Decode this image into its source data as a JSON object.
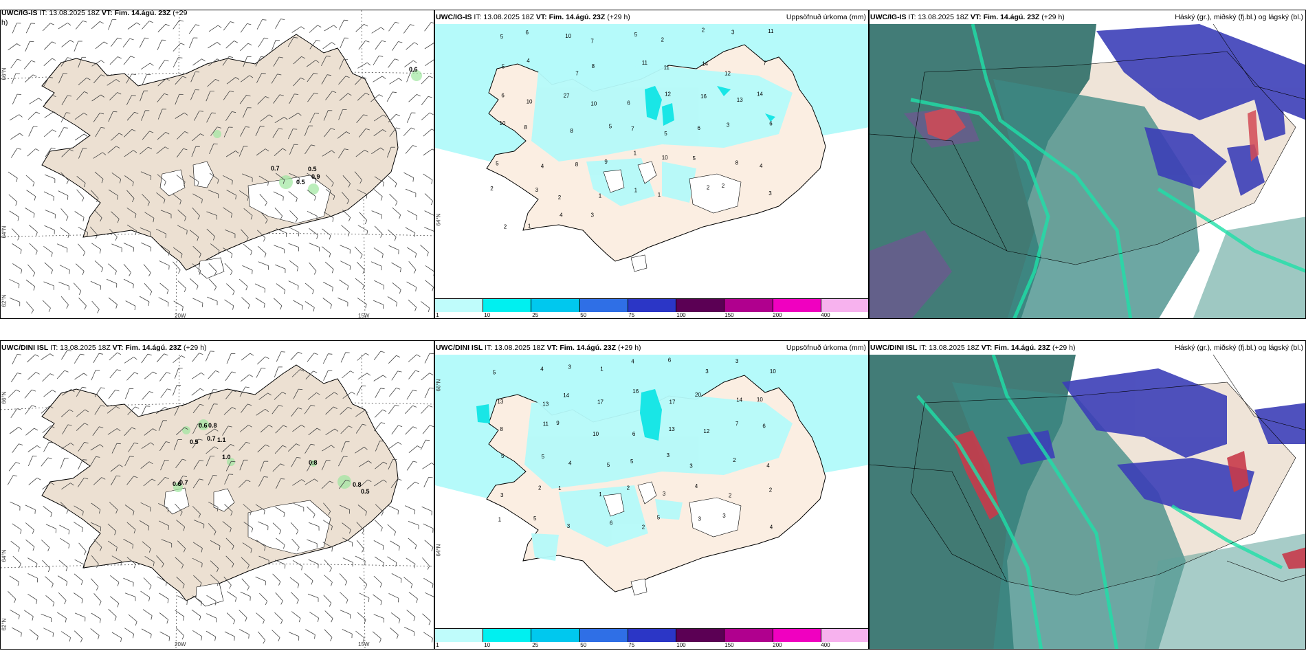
{
  "panels": {
    "wind_top": {
      "model": "UWC/IG-IS",
      "it": "IT: 13.08.2025 18Z",
      "vt_label": "VT: Fim. 14.ágú. 23Z",
      "lead": "(+29",
      "lead2": "h)",
      "lat_labels": [
        "66°N",
        "64°N",
        "62°N"
      ],
      "lon_labels": [
        "20W",
        "15W"
      ],
      "values": [
        "0.6",
        "0.7",
        "0.5",
        "0.9",
        "0.5"
      ]
    },
    "precip_top": {
      "model": "UWC/IG-IS",
      "it": "IT: 13.08.2025 18Z",
      "vt_label": "VT: Fim. 14.ágú. 23Z",
      "lead": "(+29 h)",
      "right": "Uppsöfnuð úrkoma (mm)",
      "lat_label": "64°N"
    },
    "cloud_top": {
      "model": "UWC/IG-IS",
      "it": "IT: 13.08.2025 18Z",
      "vt_label": "VT: Fim. 14.ágú. 23Z",
      "lead": "(+29 h)",
      "right": "Háský (gr.), miðský (fj.bl.) og lágský (bl.)"
    },
    "wind_bottom": {
      "model": "UWC/DINI ISL",
      "it": "IT: 13.08.2025 18Z",
      "vt_label": "VT: Fim. 14.ágú. 23Z",
      "lead": "(+29 h)",
      "lat_labels": [
        "66°N",
        "64°N",
        "62°N"
      ],
      "lon_labels": [
        "20W",
        "15W"
      ],
      "values": [
        "0.6",
        "0.8",
        "0.7",
        "1.1",
        "0.5",
        "1.0",
        "0.8",
        "0.6",
        "0.7",
        "0.8",
        "0.5"
      ]
    },
    "precip_bottom": {
      "model": "UWC/DINI ISL",
      "it": "IT: 13.08.2025 18Z",
      "vt_label": "VT: Fim. 14.ágú. 23Z",
      "lead": "(+29 h)",
      "right": "Uppsöfnuð úrkoma (mm)",
      "lat_labels": [
        "66°N",
        "64°N"
      ]
    },
    "cloud_bottom": {
      "model": "UWC/DINI ISL",
      "it": "IT: 13.08.2025 18Z",
      "vt_label": "VT: Fim. 14.ágú. 23Z",
      "lead": "(+29 h)",
      "right": "Háský (gr.), miðský (fj.bl.) og lágský (bl.)"
    }
  },
  "colorbar": {
    "ticks": [
      "1",
      "10",
      "25",
      "50",
      "75",
      "100",
      "150",
      "200",
      "400"
    ],
    "colors": [
      "#bffcfb",
      "#00f0f0",
      "#00c8ee",
      "#2f6fe6",
      "#2b36c6",
      "#5b0054",
      "#b0008e",
      "#f000c0",
      "#f7b2ee"
    ]
  },
  "precip_numbers_top": [
    "5",
    "6",
    "10",
    "7",
    "5",
    "2",
    "2",
    "3",
    "11",
    "5",
    "4",
    "7",
    "8",
    "11",
    "11",
    "14",
    "12",
    "7",
    "6",
    "10",
    "27",
    "10",
    "6",
    "12",
    "16",
    "13",
    "14",
    "10",
    "8",
    "8",
    "5",
    "7",
    "5",
    "6",
    "3",
    "6",
    "5",
    "4",
    "8",
    "9",
    "1",
    "10",
    "5",
    "8",
    "4",
    "2",
    "3",
    "2",
    "1",
    "1",
    "1",
    "2",
    "2",
    "3",
    "2",
    "1",
    "4",
    "3"
  ],
  "precip_numbers_bottom": [
    "5",
    "4",
    "3",
    "1",
    "4",
    "6",
    "3",
    "3",
    "10",
    "13",
    "13",
    "14",
    "17",
    "16",
    "17",
    "20",
    "14",
    "10",
    "8",
    "11",
    "9",
    "10",
    "6",
    "13",
    "12",
    "7",
    "6",
    "5",
    "5",
    "4",
    "5",
    "5",
    "3",
    "3",
    "2",
    "4",
    "3",
    "2",
    "1",
    "1",
    "2",
    "3",
    "4",
    "2",
    "2",
    "1",
    "5",
    "3",
    "6",
    "2",
    "5",
    "3",
    "3",
    "4"
  ],
  "icons": {
    "wind_barb": "wind-barb-icon"
  }
}
